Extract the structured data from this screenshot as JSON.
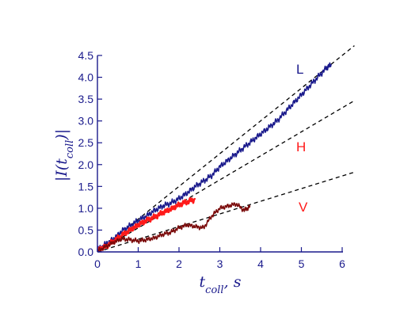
{
  "chart_data": {
    "type": "line",
    "xlabel": "t_coll, s",
    "ylabel": "|I(t_coll)|",
    "xlim": [
      0,
      6
    ],
    "ylim": [
      0,
      4.5
    ],
    "xticks": [
      "0",
      "1",
      "2",
      "3",
      "4",
      "5",
      "6"
    ],
    "yticks": [
      "0.0",
      "0.5",
      "1.0",
      "1.5",
      "2.0",
      "2.5",
      "3.0",
      "3.5",
      "4.0",
      "4.5"
    ],
    "grid": false,
    "legend": "inline labels at right",
    "colors": {
      "axis": "#1a1a8c",
      "L": "#1a1a8c",
      "H": "#ff1a1a",
      "V": "#7a0a0a",
      "fit": "#000000"
    },
    "series": [
      {
        "name": "L",
        "color": "#1a1a8c",
        "x": [
          0,
          0.2,
          0.4,
          0.6,
          0.8,
          1.0,
          1.2,
          1.4,
          1.6,
          1.8,
          2.0,
          2.2,
          2.4,
          2.6,
          2.8,
          3.0,
          3.2,
          3.4,
          3.6,
          3.8,
          4.0,
          4.2,
          4.4,
          4.6,
          4.8,
          5.0,
          5.2,
          5.4,
          5.6,
          5.73
        ],
        "y": [
          0.05,
          0.18,
          0.3,
          0.48,
          0.6,
          0.72,
          0.82,
          0.95,
          1.05,
          1.12,
          1.22,
          1.35,
          1.5,
          1.62,
          1.75,
          1.95,
          2.1,
          2.25,
          2.4,
          2.55,
          2.7,
          2.85,
          3.0,
          3.2,
          3.4,
          3.6,
          3.8,
          4.0,
          4.2,
          4.3
        ]
      },
      {
        "name": "H",
        "color": "#ff1a1a",
        "x": [
          0,
          0.2,
          0.4,
          0.6,
          0.8,
          1.0,
          1.2,
          1.4,
          1.6,
          1.8,
          2.0,
          2.2,
          2.4
        ],
        "y": [
          0.05,
          0.12,
          0.25,
          0.38,
          0.5,
          0.62,
          0.72,
          0.8,
          0.9,
          0.98,
          1.08,
          1.15,
          1.2
        ]
      },
      {
        "name": "V",
        "color": "#7a0a0a",
        "x": [
          0,
          0.2,
          0.4,
          0.6,
          0.8,
          1.0,
          1.2,
          1.4,
          1.6,
          1.8,
          2.0,
          2.2,
          2.4,
          2.6,
          2.8,
          3.0,
          3.2,
          3.4,
          3.6,
          3.75
        ],
        "y": [
          0.02,
          0.12,
          0.22,
          0.3,
          0.28,
          0.25,
          0.28,
          0.32,
          0.4,
          0.45,
          0.55,
          0.62,
          0.58,
          0.55,
          0.82,
          1.0,
          1.05,
          1.1,
          0.95,
          1.05
        ]
      }
    ],
    "fit_lines": [
      {
        "series": "L",
        "slope": 0.75
      },
      {
        "series": "H",
        "slope": 0.55
      },
      {
        "series": "V",
        "slope": 0.29
      }
    ],
    "fit_x_end": 6.3
  }
}
